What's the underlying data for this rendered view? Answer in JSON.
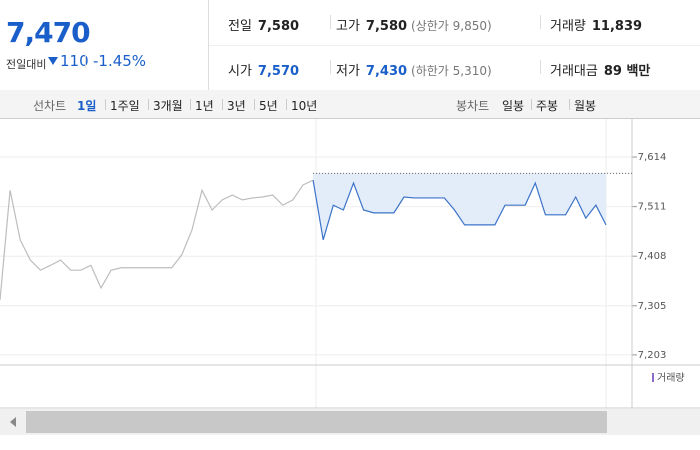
{
  "header": {
    "price": "7,470",
    "change_label": "전일대비",
    "change": "110",
    "change_rate": "-1.45%"
  },
  "summary": [
    {
      "label": "전일",
      "value": "7,580"
    },
    {
      "label": "고가",
      "value": "7,580",
      "note": "(상한가 9,850)"
    },
    {
      "label": "거래량",
      "value": "11,839"
    },
    {
      "label": "시가",
      "value": "7,570"
    },
    {
      "label": "저가",
      "value": "7,430",
      "note": "(하한가 5,310)"
    },
    {
      "label": "거래대금",
      "value": "89 백만"
    }
  ],
  "tabs": {
    "line_label": "선차트",
    "line": [
      "1일",
      "1주일",
      "3개월",
      "1년",
      "3년",
      "5년",
      "10년"
    ],
    "candle_label": "봉차트",
    "candle": [
      "일봉",
      "주봉",
      "월봉"
    ]
  },
  "chart_data": {
    "type": "line",
    "series": [
      {
        "color": "#bdbdbd",
        "values": [
          7317,
          7545,
          7442,
          7400,
          7379,
          7389,
          7400,
          7379,
          7379,
          7389,
          7342,
          7379,
          7384,
          7384,
          7384,
          7384,
          7384,
          7384,
          7411,
          7462,
          7545,
          7504,
          7525,
          7535,
          7525,
          7529,
          7531,
          7535,
          7514,
          7525,
          7556,
          7566,
          null,
          null,
          null,
          null,
          null,
          null,
          null,
          null,
          null,
          null,
          null,
          null,
          null,
          null,
          null,
          null,
          null,
          null,
          null,
          null,
          null,
          null,
          null,
          null,
          null,
          null,
          null,
          null,
          null
        ]
      },
      {
        "color": "#3b73c9",
        "values": [
          null,
          null,
          null,
          null,
          null,
          null,
          null,
          null,
          null,
          null,
          null,
          null,
          null,
          null,
          null,
          null,
          null,
          null,
          null,
          null,
          null,
          null,
          null,
          null,
          null,
          null,
          null,
          null,
          null,
          null,
          null,
          7566,
          7442,
          7514,
          7504,
          7560,
          7504,
          7498,
          7498,
          7498,
          7531,
          7529,
          7529,
          7529,
          7529,
          7504,
          7473,
          7473,
          7473,
          7473,
          7514,
          7514,
          7514,
          7560,
          7494,
          7494,
          7494,
          7531,
          7487,
          7514,
          7473
        ]
      }
    ],
    "reference_line": 7580,
    "fill": "#e3ecf9",
    "ylim": [
      7182,
      7639
    ],
    "yticks": [
      {
        "value": 7203,
        "label": "7,203"
      },
      {
        "value": 7305,
        "label": "7,305"
      },
      {
        "value": 7408,
        "label": "7,408"
      },
      {
        "value": 7511,
        "label": "7,511"
      },
      {
        "value": 7614,
        "label": "7,614"
      }
    ],
    "grid": true,
    "volume_label": "거래량"
  }
}
